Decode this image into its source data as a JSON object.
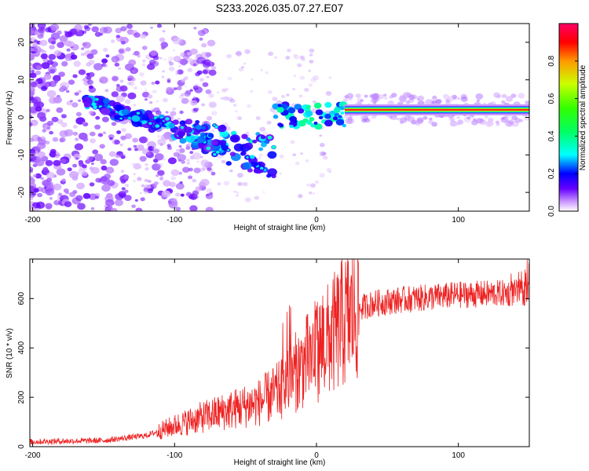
{
  "figure_title": "S233.2026.035.07.27.E07",
  "chart_data": [
    {
      "type": "heatmap",
      "title": "S233.2026.035.07.27.E07",
      "xlabel": "Height of straight line (km)",
      "ylabel": "Frequency (Hz)",
      "xlim": [
        -202,
        150
      ],
      "ylim": [
        -25,
        25
      ],
      "xticks": [
        -200,
        -100,
        0,
        100
      ],
      "yticks": [
        -20,
        -10,
        0,
        10,
        20
      ],
      "colorbar": {
        "label": "Normalized spectral amplitude",
        "range": [
          0,
          1
        ],
        "ticks": [
          0.0,
          0.2,
          0.4,
          0.6,
          0.8
        ],
        "colors": [
          "#ffffff",
          "#cc99ff",
          "#6600ff",
          "#0000ff",
          "#00ffff",
          "#00ff66",
          "#33ff00",
          "#ccff00",
          "#ff9900",
          "#ff0000",
          "#ff0066"
        ]
      },
      "features": {
        "main_band": {
          "x_start": 20,
          "x_end": 150,
          "frequency_hz": 2,
          "amplitude": 0.95
        },
        "diagonal_streak": {
          "x_start": -160,
          "x_end": -30,
          "frequency_start_hz": 5,
          "frequency_end_hz": -15
        }
      }
    },
    {
      "type": "line",
      "xlabel": "Height of straight line (km)",
      "ylabel": "SNR (10 * v/v)",
      "xlim": [
        -202,
        150
      ],
      "ylim": [
        0,
        760
      ],
      "xticks": [
        -200,
        -100,
        0,
        100
      ],
      "yticks": [
        0,
        200,
        400,
        600
      ],
      "series": [
        {
          "name": "SNR",
          "color": "#ee2222",
          "keypoints_x": [
            -202,
            -150,
            -120,
            -100,
            -80,
            -60,
            -40,
            -25,
            -15,
            0,
            10,
            20,
            30,
            40,
            60,
            100,
            150
          ],
          "keypoints_y": [
            20,
            25,
            45,
            85,
            120,
            150,
            180,
            230,
            300,
            390,
            440,
            510,
            560,
            580,
            595,
            615,
            625
          ]
        }
      ]
    }
  ]
}
